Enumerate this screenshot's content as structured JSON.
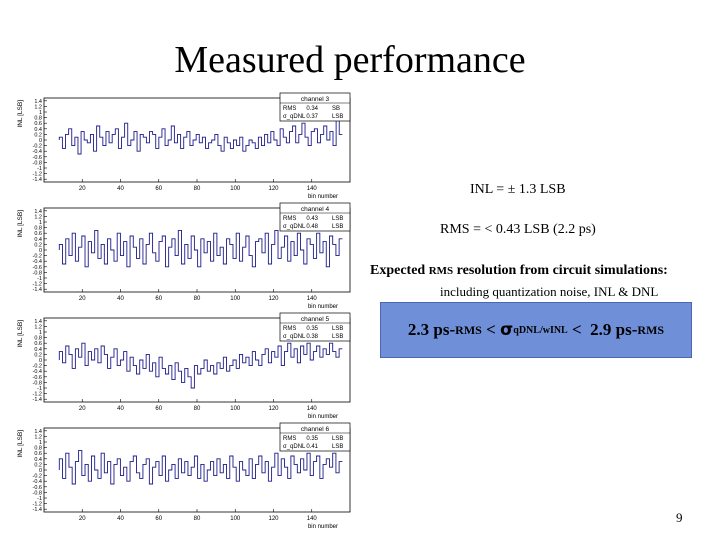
{
  "slide": {
    "title": "Measured performance",
    "inl_text": "INL = ± 1.3 LSB",
    "rms_text": "RMS = < 0.43 LSB (2.2 ps)",
    "expected_text": "Expected",
    "expected_rms": "RMS",
    "expected_tail": "resolution from circuit simulations:",
    "including_text": "including quantization noise, INL & DNL",
    "box": {
      "a": "2.3 ps-",
      "a_rms": "RMS",
      "lt1": " < ",
      "sigma": "σ",
      "sigma_sub": "qDNL/wINL",
      "lt2": " <  2.9 ps-",
      "b_rms": "RMS"
    },
    "page_number": "9"
  },
  "chart_data": [
    {
      "type": "bar",
      "title": "channel 3",
      "ylabel": "INL [LSB]",
      "xlabel": "bin number",
      "ylim": [
        -1.5,
        1.5
      ],
      "xlim": [
        0,
        160
      ],
      "yticks": [
        "1.4",
        "1.2",
        "1",
        "0.8",
        "0.6",
        "0.4",
        "0.2",
        "0",
        "-0.2",
        "-0.4",
        "-0.6",
        "-0.8",
        "-1",
        "-1.2",
        "-1.4"
      ],
      "xticks": [
        "20",
        "40",
        "60",
        "80",
        "100",
        "120",
        "140"
      ],
      "stats": [
        [
          "RMS",
          "0.34",
          "SB"
        ],
        [
          "σ_qDNL",
          "0.37",
          "LSB"
        ]
      ],
      "values": [
        0.1,
        -0.3,
        0.2,
        0.4,
        -0.2,
        0.1,
        -0.5,
        0.3,
        0.0,
        -0.1,
        0.2,
        -0.4,
        0.5,
        0.1,
        -0.2,
        0.3,
        -0.1,
        0.2,
        0.4,
        -0.3,
        0.1,
        0.6,
        -0.2,
        0.0,
        0.3,
        -0.4,
        0.2,
        0.1,
        -0.1,
        0.3,
        0.2,
        -0.3,
        0.1,
        0.4,
        -0.2,
        0.0,
        0.5,
        -0.1,
        0.2,
        -0.3,
        0.1,
        0.3,
        -0.2,
        0.0,
        0.2,
        -0.1,
        0.1,
        -0.3,
        -0.1,
        0.0,
        0.2,
        -0.2,
        -0.4,
        0.1,
        -0.1,
        -0.3,
        0.0,
        -0.2,
        0.1,
        -0.4,
        -0.2,
        0.0,
        -0.1,
        -0.3,
        0.1,
        -0.2,
        0.2,
        -0.1,
        0.3,
        0.0,
        -0.2,
        0.4,
        0.1,
        -0.1,
        0.3,
        0.5,
        -0.1,
        0.2,
        0.6,
        0.1,
        -0.2,
        0.3,
        0.4,
        -0.1,
        0.2,
        0.5,
        0.0,
        0.3,
        -0.2,
        0.7,
        0.2
      ]
    },
    {
      "type": "bar",
      "title": "channel 4",
      "ylabel": "INL [LSB]",
      "xlabel": "bin number",
      "ylim": [
        -1.5,
        1.5
      ],
      "xlim": [
        0,
        160
      ],
      "yticks": [
        "1.4",
        "1.2",
        "1",
        "0.8",
        "0.6",
        "0.4",
        "0.2",
        "0",
        "-0.2",
        "-0.4",
        "-0.6",
        "-0.8",
        "-1",
        "-1.2",
        "-1.4"
      ],
      "xticks": [
        "20",
        "40",
        "60",
        "80",
        "100",
        "120",
        "140"
      ],
      "stats": [
        [
          "RMS",
          "0.43",
          "LSB"
        ],
        [
          "σ_qDNL",
          "0.48",
          "LSB"
        ]
      ],
      "values": [
        0.2,
        -0.5,
        0.4,
        -0.2,
        0.6,
        -0.4,
        0.1,
        0.5,
        -0.6,
        0.3,
        -0.1,
        0.7,
        -0.3,
        0.2,
        -0.5,
        0.4,
        0.0,
        -0.4,
        0.6,
        -0.2,
        0.3,
        -0.6,
        0.5,
        0.1,
        -0.3,
        0.4,
        -0.5,
        0.2,
        0.6,
        -0.1,
        -0.4,
        0.3,
        0.5,
        -0.6,
        0.1,
        0.4,
        -0.2,
        0.7,
        -0.5,
        0.2,
        -0.3,
        0.5,
        0.0,
        -0.6,
        0.4,
        -0.1,
        0.3,
        -0.4,
        0.6,
        -0.2,
        0.1,
        -0.5,
        0.4,
        0.2,
        -0.3,
        0.6,
        -0.4,
        0.1,
        0.5,
        -0.2,
        -0.6,
        0.3,
        0.4,
        -0.1,
        0.6,
        -0.5,
        0.2,
        0.7,
        -0.3,
        0.1,
        0.5,
        -0.4,
        0.3,
        -0.2,
        0.6,
        0.0,
        -0.5,
        0.4,
        0.2,
        -0.3,
        0.6,
        -0.1,
        0.3,
        -0.6,
        0.5,
        0.2,
        -0.2,
        0.4
      ]
    },
    {
      "type": "bar",
      "title": "channel 5",
      "ylabel": "INL [LSB]",
      "xlabel": "bin number",
      "ylim": [
        -1.5,
        1.5
      ],
      "xlim": [
        0,
        160
      ],
      "yticks": [
        "1.4",
        "1.2",
        "1",
        "0.8",
        "0.6",
        "0.4",
        "0.2",
        "0",
        "-0.2",
        "-0.4",
        "-0.6",
        "-0.8",
        "-1",
        "-1.2",
        "-1.4"
      ],
      "xticks": [
        "20",
        "40",
        "60",
        "80",
        "100",
        "120",
        "140"
      ],
      "stats": [
        [
          "RMS",
          "0.35",
          "LSB"
        ],
        [
          "σ_qDNL",
          "0.38",
          "LSB"
        ]
      ],
      "values": [
        0.3,
        -0.1,
        0.5,
        0.2,
        -0.3,
        0.4,
        0.1,
        0.6,
        -0.2,
        0.3,
        0.0,
        0.4,
        -0.1,
        0.5,
        0.2,
        -0.3,
        0.1,
        0.4,
        -0.2,
        0.0,
        0.3,
        -0.4,
        0.1,
        -0.2,
        -0.5,
        0.0,
        -0.3,
        0.2,
        -0.4,
        -0.1,
        -0.6,
        0.1,
        -0.3,
        -0.5,
        -0.2,
        -0.7,
        -0.1,
        -0.4,
        -0.8,
        -0.3,
        -0.6,
        -1.0,
        -0.2,
        -0.5,
        -0.3,
        0.0,
        -0.4,
        -0.2,
        -0.5,
        -0.1,
        -0.3,
        0.1,
        -0.4,
        -0.2,
        0.0,
        -0.3,
        0.2,
        -0.1,
        0.1,
        -0.2,
        0.3,
        0.0,
        -0.2,
        0.2,
        0.4,
        -0.1,
        0.3,
        0.1,
        0.5,
        -0.2,
        0.3,
        0.6,
        0.1,
        0.4,
        -0.1,
        0.5,
        0.2,
        0.6,
        0.0,
        0.3,
        0.5,
        0.1,
        0.4,
        0.2,
        0.6,
        0.3,
        0.1,
        0.4
      ]
    },
    {
      "type": "bar",
      "title": "channel 6",
      "ylabel": "INL [LSB]",
      "xlabel": "bin number",
      "ylim": [
        -1.5,
        1.5
      ],
      "xlim": [
        0,
        160
      ],
      "yticks": [
        "1.4",
        "1.2",
        "1",
        "0.8",
        "0.6",
        "0.4",
        "0.2",
        "0",
        "-0.2",
        "-0.4",
        "-0.6",
        "-0.8",
        "-1",
        "-1.2",
        "-1.4"
      ],
      "xticks": [
        "20",
        "40",
        "60",
        "80",
        "100",
        "120",
        "140"
      ],
      "stats": [
        [
          "RMS",
          "0.35",
          "LSB"
        ],
        [
          "σ_qDNL",
          "0.41",
          "LSB"
        ]
      ],
      "values": [
        0.4,
        -0.3,
        0.6,
        0.1,
        -0.5,
        0.3,
        0.7,
        -0.2,
        0.2,
        -0.4,
        0.5,
        0.0,
        -0.3,
        0.6,
        -0.1,
        0.3,
        -0.5,
        0.2,
        0.4,
        -0.2,
        0.1,
        -0.4,
        0.3,
        0.5,
        -0.1,
        -0.3,
        0.2,
        0.4,
        -0.5,
        0.1,
        0.3,
        -0.2,
        0.5,
        -0.4,
        0.0,
        0.2,
        -0.3,
        0.4,
        -0.1,
        0.3,
        -0.2,
        0.1,
        0.5,
        -0.3,
        0.2,
        -0.4,
        0.0,
        0.3,
        -0.2,
        0.4,
        -0.1,
        0.2,
        -0.3,
        0.5,
        0.1,
        -0.4,
        0.3,
        0.0,
        -0.2,
        0.4,
        -0.3,
        0.2,
        0.5,
        -0.1,
        0.3,
        -0.4,
        0.1,
        0.6,
        -0.2,
        0.4,
        0.1,
        -0.3,
        0.5,
        0.2,
        -0.1,
        0.4,
        0.0,
        0.6,
        -0.2,
        0.3,
        0.5,
        -0.3,
        0.2,
        0.4,
        0.1,
        0.6,
        -0.1,
        0.3
      ]
    }
  ]
}
